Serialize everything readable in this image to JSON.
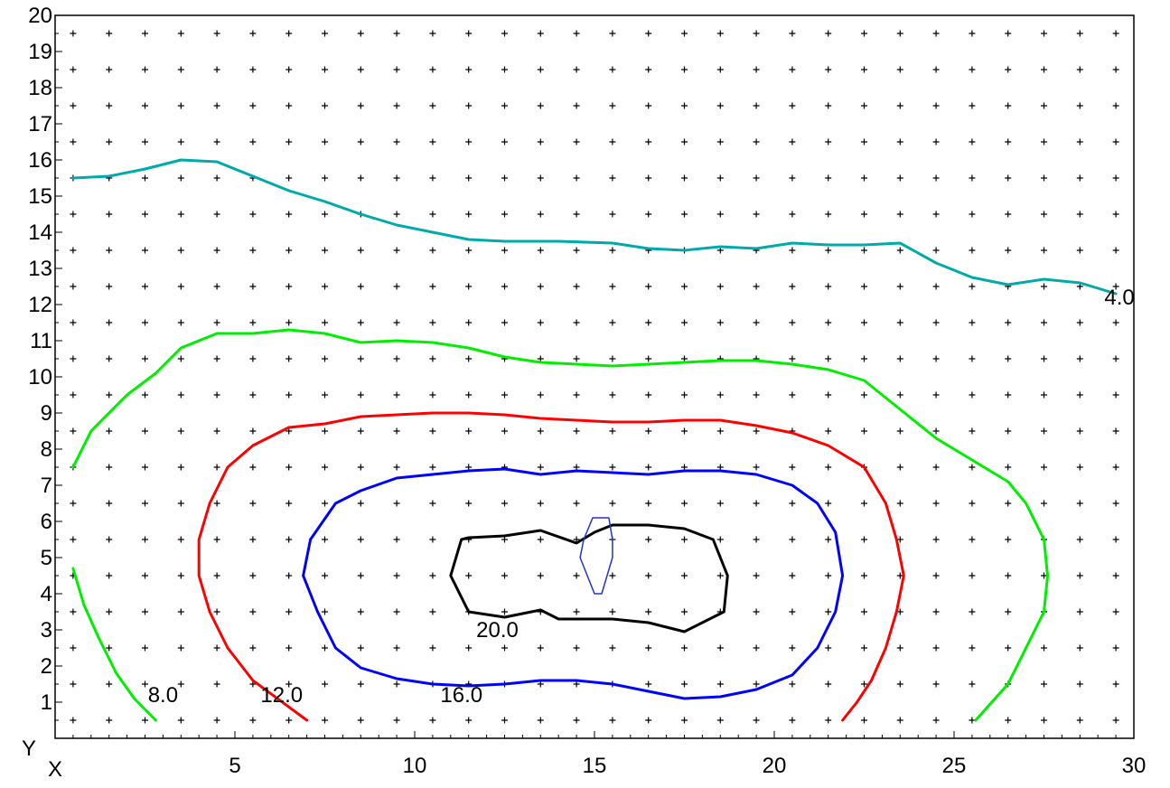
{
  "chart_data": {
    "type": "line",
    "title": "",
    "xlabel": "X",
    "ylabel": "Y",
    "xlim": [
      0,
      30
    ],
    "ylim": [
      0,
      20
    ],
    "grid": "point-markers",
    "x_ticks": [
      5,
      10,
      15,
      20,
      25,
      30
    ],
    "y_ticks": [
      1,
      2,
      3,
      4,
      5,
      6,
      7,
      8,
      9,
      10,
      11,
      12,
      13,
      14,
      15,
      16,
      17,
      18,
      19,
      20
    ],
    "series": [
      {
        "label": "4.0",
        "color": "#00aaaa",
        "points": [
          [
            0.5,
            15.5
          ],
          [
            1.5,
            15.55
          ],
          [
            2.5,
            15.75
          ],
          [
            3.5,
            16.0
          ],
          [
            4.5,
            15.95
          ],
          [
            5.5,
            15.55
          ],
          [
            6.5,
            15.15
          ],
          [
            7.5,
            14.85
          ],
          [
            8.5,
            14.5
          ],
          [
            9.5,
            14.2
          ],
          [
            10.5,
            14.0
          ],
          [
            11.5,
            13.8
          ],
          [
            12.5,
            13.75
          ],
          [
            14.0,
            13.75
          ],
          [
            15.5,
            13.7
          ],
          [
            16.5,
            13.55
          ],
          [
            17.5,
            13.5
          ],
          [
            18.5,
            13.6
          ],
          [
            19.5,
            13.55
          ],
          [
            20.5,
            13.7
          ],
          [
            21.5,
            13.65
          ],
          [
            22.5,
            13.65
          ],
          [
            23.5,
            13.7
          ],
          [
            24.5,
            13.15
          ],
          [
            25.5,
            12.75
          ],
          [
            26.5,
            12.55
          ],
          [
            27.5,
            12.7
          ],
          [
            28.5,
            12.6
          ],
          [
            29.5,
            12.3
          ]
        ]
      },
      {
        "label": "8.0",
        "color": "#00ee00",
        "points": [
          [
            0.5,
            7.5
          ],
          [
            1.0,
            8.5
          ],
          [
            2.0,
            9.5
          ],
          [
            2.8,
            10.1
          ],
          [
            3.5,
            10.8
          ],
          [
            4.5,
            11.2
          ],
          [
            5.5,
            11.2
          ],
          [
            6.5,
            11.3
          ],
          [
            7.5,
            11.2
          ],
          [
            8.5,
            10.95
          ],
          [
            9.5,
            11.0
          ],
          [
            10.5,
            10.95
          ],
          [
            11.5,
            10.8
          ],
          [
            12.5,
            10.55
          ],
          [
            13.5,
            10.4
          ],
          [
            14.5,
            10.35
          ],
          [
            15.5,
            10.3
          ],
          [
            16.5,
            10.35
          ],
          [
            17.5,
            10.4
          ],
          [
            18.5,
            10.45
          ],
          [
            19.5,
            10.45
          ],
          [
            20.5,
            10.35
          ],
          [
            21.5,
            10.2
          ],
          [
            22.5,
            9.9
          ],
          [
            23.5,
            9.1
          ],
          [
            24.5,
            8.3
          ],
          [
            25.5,
            7.7
          ],
          [
            26.5,
            7.1
          ],
          [
            27.0,
            6.5
          ],
          [
            27.5,
            5.5
          ],
          [
            27.6,
            4.5
          ],
          [
            27.5,
            3.5
          ],
          [
            27.0,
            2.5
          ],
          [
            26.5,
            1.5
          ],
          [
            25.6,
            0.5
          ]
        ]
      },
      {
        "label": "8.0",
        "color": "#00ee00",
        "points": [
          [
            0.5,
            4.7
          ],
          [
            0.8,
            3.7
          ],
          [
            1.2,
            2.8
          ],
          [
            1.7,
            1.8
          ],
          [
            2.2,
            1.1
          ],
          [
            2.8,
            0.5
          ]
        ]
      },
      {
        "label": "12.0",
        "color": "#ff0000",
        "points": [
          [
            7.0,
            0.5
          ],
          [
            5.5,
            1.6
          ],
          [
            4.8,
            2.5
          ],
          [
            4.3,
            3.5
          ],
          [
            4.0,
            4.5
          ],
          [
            4.0,
            5.5
          ],
          [
            4.3,
            6.5
          ],
          [
            4.8,
            7.5
          ],
          [
            5.5,
            8.1
          ],
          [
            6.5,
            8.6
          ],
          [
            7.5,
            8.7
          ],
          [
            8.5,
            8.9
          ],
          [
            9.5,
            8.95
          ],
          [
            10.5,
            9.0
          ],
          [
            11.5,
            9.0
          ],
          [
            12.5,
            8.95
          ],
          [
            13.5,
            8.85
          ],
          [
            14.5,
            8.8
          ],
          [
            15.5,
            8.75
          ],
          [
            16.5,
            8.75
          ],
          [
            17.5,
            8.8
          ],
          [
            18.5,
            8.8
          ],
          [
            19.5,
            8.65
          ],
          [
            20.5,
            8.45
          ],
          [
            21.5,
            8.1
          ],
          [
            22.5,
            7.5
          ],
          [
            23.1,
            6.5
          ],
          [
            23.4,
            5.5
          ],
          [
            23.6,
            4.5
          ],
          [
            23.4,
            3.5
          ],
          [
            23.1,
            2.5
          ],
          [
            22.7,
            1.6
          ],
          [
            22.3,
            1.0
          ],
          [
            21.9,
            0.5
          ]
        ]
      },
      {
        "label": "16.0",
        "color": "#0000ff",
        "points": [
          [
            11.5,
            1.45
          ],
          [
            12.5,
            1.5
          ],
          [
            13.5,
            1.6
          ],
          [
            14.5,
            1.6
          ],
          [
            15.5,
            1.5
          ],
          [
            16.5,
            1.3
          ],
          [
            17.5,
            1.1
          ],
          [
            18.5,
            1.15
          ],
          [
            19.5,
            1.35
          ],
          [
            20.5,
            1.75
          ],
          [
            21.2,
            2.5
          ],
          [
            21.7,
            3.5
          ],
          [
            21.9,
            4.5
          ],
          [
            21.7,
            5.7
          ],
          [
            21.2,
            6.5
          ],
          [
            20.5,
            7.0
          ],
          [
            19.5,
            7.3
          ],
          [
            18.5,
            7.4
          ],
          [
            17.5,
            7.4
          ],
          [
            16.5,
            7.3
          ],
          [
            15.5,
            7.35
          ],
          [
            14.5,
            7.4
          ],
          [
            13.5,
            7.3
          ],
          [
            12.5,
            7.45
          ],
          [
            11.5,
            7.4
          ],
          [
            10.5,
            7.3
          ],
          [
            9.5,
            7.2
          ],
          [
            8.5,
            6.85
          ],
          [
            7.8,
            6.5
          ],
          [
            7.1,
            5.5
          ],
          [
            6.9,
            4.5
          ],
          [
            7.3,
            3.5
          ],
          [
            7.8,
            2.5
          ],
          [
            8.5,
            1.95
          ],
          [
            9.5,
            1.65
          ],
          [
            10.5,
            1.5
          ],
          [
            11.5,
            1.45
          ]
        ]
      },
      {
        "label": "20.0",
        "color": "#000000",
        "points": [
          [
            11.3,
            5.5
          ],
          [
            11.5,
            5.55
          ],
          [
            12.5,
            5.6
          ],
          [
            13.5,
            5.75
          ],
          [
            14.5,
            5.4
          ],
          [
            15.0,
            5.7
          ],
          [
            15.5,
            5.9
          ],
          [
            16.5,
            5.9
          ],
          [
            17.5,
            5.8
          ],
          [
            18.3,
            5.5
          ],
          [
            18.7,
            4.5
          ],
          [
            18.6,
            3.5
          ],
          [
            17.5,
            2.95
          ],
          [
            16.5,
            3.2
          ],
          [
            15.5,
            3.3
          ],
          [
            14.0,
            3.3
          ],
          [
            13.5,
            3.55
          ],
          [
            12.5,
            3.35
          ],
          [
            11.5,
            3.5
          ],
          [
            11.0,
            4.5
          ],
          [
            11.3,
            5.5
          ]
        ]
      },
      {
        "label": "",
        "color": "#2233cc",
        "points": [
          [
            15.0,
            4.0
          ],
          [
            14.6,
            5.0
          ],
          [
            14.7,
            5.5
          ],
          [
            14.95,
            6.1
          ],
          [
            15.4,
            6.1
          ],
          [
            15.5,
            5.5
          ],
          [
            15.5,
            5.0
          ],
          [
            15.2,
            4.0
          ],
          [
            15.0,
            4.0
          ]
        ]
      }
    ],
    "contour_labels": [
      {
        "text": "4.0",
        "x": 29.6,
        "y": 12.0
      },
      {
        "text": "8.0",
        "x": 3.0,
        "y": 1.0
      },
      {
        "text": "12.0",
        "x": 6.3,
        "y": 1.0
      },
      {
        "text": "16.0",
        "x": 11.3,
        "y": 1.0
      },
      {
        "text": "20.0",
        "x": 12.3,
        "y": 2.8
      }
    ]
  }
}
